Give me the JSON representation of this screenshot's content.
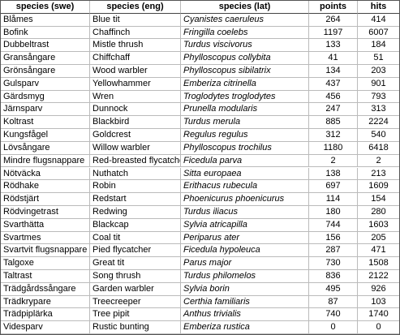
{
  "table": {
    "header": [
      "species (swe)",
      "species (eng)",
      "species (lat)",
      "points",
      "hits"
    ],
    "rows": [
      [
        "Blåmes",
        "Blue tit",
        "Cyanistes caeruleus",
        264,
        414
      ],
      [
        "Bofink",
        "Chaffinch",
        "Fringilla coelebs",
        1197,
        6007
      ],
      [
        "Dubbeltrast",
        "Mistle thrush",
        "Turdus viscivorus",
        133,
        184
      ],
      [
        "Gransångare",
        "Chiffchaff",
        "Phylloscopus collybita",
        41,
        51
      ],
      [
        "Grönsångare",
        "Wood warbler",
        "Phylloscopus sibilatrix",
        134,
        203
      ],
      [
        "Gulsparv",
        "Yellowhammer",
        "Emberiza citrinella",
        437,
        901
      ],
      [
        "Gärdsmyg",
        "Wren",
        "Troglodytes troglodytes",
        456,
        793
      ],
      [
        "Järnsparv",
        "Dunnock",
        "Prunella modularis",
        247,
        313
      ],
      [
        "Koltrast",
        "Blackbird",
        "Turdus merula",
        885,
        2224
      ],
      [
        "Kungsfågel",
        "Goldcrest",
        "Regulus regulus",
        312,
        540
      ],
      [
        "Lövsångare",
        "Willow warbler",
        "Phylloscopus trochilus",
        1180,
        6418
      ],
      [
        "Mindre flugsnappare",
        "Red-breasted flycatcher",
        "Ficedula parva",
        2,
        2
      ],
      [
        "Nötväcka",
        "Nuthatch",
        "Sitta europaea",
        138,
        213
      ],
      [
        "Rödhake",
        "Robin",
        "Erithacus rubecula",
        697,
        1609
      ],
      [
        "Rödstjärt",
        "Redstart",
        "Phoenicurus phoenicurus",
        114,
        154
      ],
      [
        "Rödvingetrast",
        "Redwing",
        "Turdus iliacus",
        180,
        280
      ],
      [
        "Svarthätta",
        "Blackcap",
        "Sylvia atricapilla",
        744,
        1603
      ],
      [
        "Svartmes",
        "Coal tit",
        "Periparus ater",
        156,
        205
      ],
      [
        "Svartvit flugsnappare",
        "Pied flycatcher",
        "Ficedula hypoleuca",
        287,
        471
      ],
      [
        "Talgoxe",
        "Great tit",
        "Parus major",
        730,
        1508
      ],
      [
        "Taltrast",
        "Song thrush",
        "Turdus philomelos",
        836,
        2122
      ],
      [
        "Trädgårdssångare",
        "Garden warbler",
        "Sylvia borin",
        495,
        926
      ],
      [
        "Trädkrypare",
        "Treecreeper",
        "Certhia familiaris",
        87,
        103
      ],
      [
        "Trädpiplärka",
        "Tree pipit",
        "Anthus trivialis",
        740,
        1740
      ],
      [
        "Videsparv",
        "Rustic bunting",
        "Emberiza rustica",
        0,
        0
      ]
    ]
  }
}
